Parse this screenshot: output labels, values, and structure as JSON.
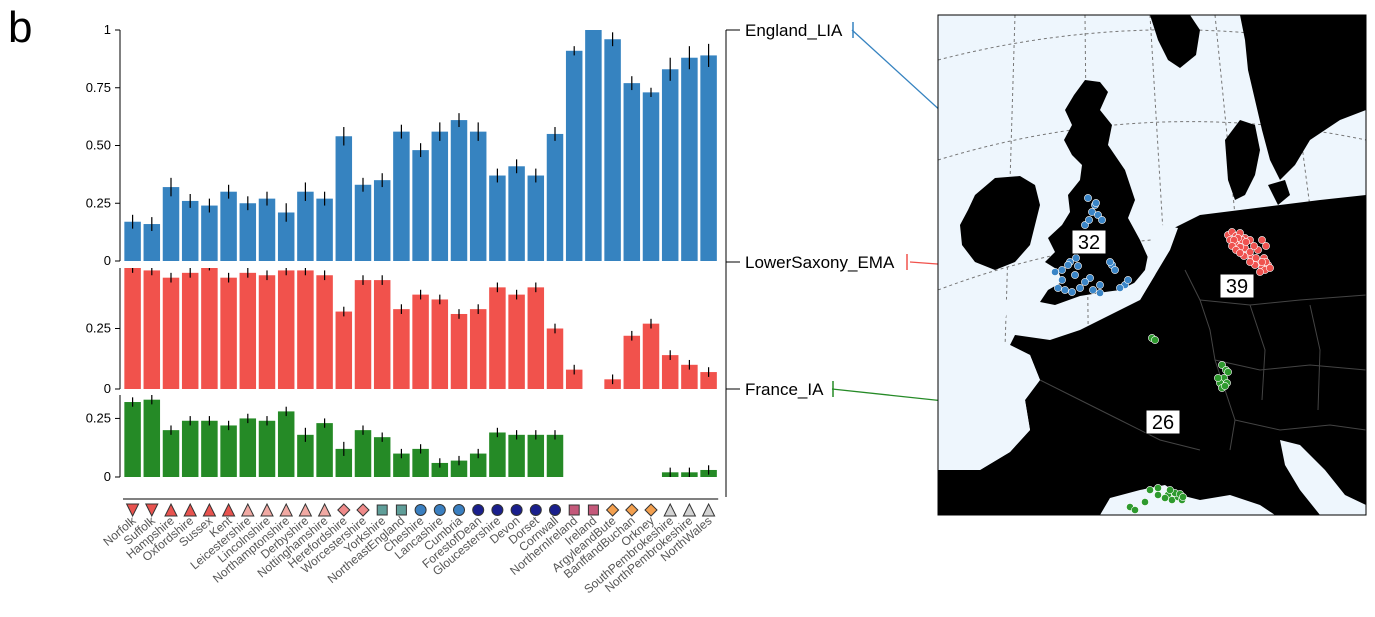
{
  "panel_label": "b",
  "map": {
    "land_color": "#000000",
    "sea_color": "#eef6fd",
    "border_color": "#333333",
    "grid_color": "#777777"
  },
  "chart_data": {
    "type": "bar",
    "stacked_panels": true,
    "error_bars": true,
    "categories": [
      "Norfolk",
      "Suffolk",
      "Hampshire",
      "Oxfordshire",
      "Sussex",
      "Kent",
      "Leicestershire",
      "Lincolnshire",
      "Northamptonshire",
      "Derbyshire",
      "Nottinghamshire",
      "Herefordshire",
      "Worcestershire",
      "Yorkshire",
      "NortheastEngland",
      "Cheshire",
      "Lancashire",
      "Cumbria",
      "ForestofDean",
      "Gloucestershire",
      "Devon",
      "Dorset",
      "Cornwall",
      "NorthernIreland",
      "Ireland",
      "ArgyleandBute",
      "BanffandBuchan",
      "Orkney",
      "SouthPembrokeshire",
      "NorthPembrokeshire",
      "NorthWales"
    ],
    "region_markers": [
      {
        "shape": "triangle-down",
        "color": "#e8534f"
      },
      {
        "shape": "triangle-down",
        "color": "#e8534f"
      },
      {
        "shape": "triangle-up",
        "color": "#e8534f"
      },
      {
        "shape": "triangle-up",
        "color": "#e8534f"
      },
      {
        "shape": "triangle-up",
        "color": "#e8534f"
      },
      {
        "shape": "triangle-up",
        "color": "#e8534f"
      },
      {
        "shape": "triangle-up",
        "color": "#f1a9a3"
      },
      {
        "shape": "triangle-up",
        "color": "#f1a9a3"
      },
      {
        "shape": "triangle-up",
        "color": "#f1a9a3"
      },
      {
        "shape": "triangle-up",
        "color": "#f1a9a3"
      },
      {
        "shape": "triangle-up",
        "color": "#f1a9a3"
      },
      {
        "shape": "diamond",
        "color": "#ef8a8a"
      },
      {
        "shape": "diamond",
        "color": "#ef8a8a"
      },
      {
        "shape": "square",
        "color": "#5f9e99"
      },
      {
        "shape": "square",
        "color": "#5f9e99"
      },
      {
        "shape": "circle",
        "color": "#3a7fc0"
      },
      {
        "shape": "circle",
        "color": "#3a7fc0"
      },
      {
        "shape": "circle",
        "color": "#3a7fc0"
      },
      {
        "shape": "circle",
        "color": "#1a1f8c"
      },
      {
        "shape": "circle",
        "color": "#1a1f8c"
      },
      {
        "shape": "circle",
        "color": "#1a1f8c"
      },
      {
        "shape": "circle",
        "color": "#1a1f8c"
      },
      {
        "shape": "circle",
        "color": "#1a1f8c"
      },
      {
        "shape": "square",
        "color": "#c4587a"
      },
      {
        "shape": "square",
        "color": "#c4587a"
      },
      {
        "shape": "diamond",
        "color": "#f3a04f"
      },
      {
        "shape": "diamond",
        "color": "#f3a04f"
      },
      {
        "shape": "diamond",
        "color": "#f3a04f"
      },
      {
        "shape": "triangle-up",
        "color": "#d3d3d3"
      },
      {
        "shape": "triangle-up",
        "color": "#d3d3d3"
      },
      {
        "shape": "triangle-up",
        "color": "#d3d3d3"
      }
    ],
    "series": [
      {
        "name": "England_LIA",
        "color": "#3683c0",
        "count": "32",
        "ylim": [
          0,
          1
        ],
        "yticks": [
          "0",
          "0.25",
          "0.50",
          "0.75",
          "1"
        ],
        "values": [
          0.17,
          0.16,
          0.32,
          0.26,
          0.24,
          0.3,
          0.25,
          0.27,
          0.21,
          0.3,
          0.27,
          0.54,
          0.33,
          0.35,
          0.56,
          0.48,
          0.56,
          0.61,
          0.56,
          0.37,
          0.41,
          0.37,
          0.55,
          0.91,
          1.0,
          0.96,
          0.77,
          0.73,
          0.83,
          0.88,
          0.89
        ],
        "errors": [
          0.03,
          0.03,
          0.04,
          0.03,
          0.03,
          0.03,
          0.03,
          0.03,
          0.04,
          0.04,
          0.03,
          0.04,
          0.03,
          0.03,
          0.03,
          0.03,
          0.04,
          0.03,
          0.04,
          0.03,
          0.03,
          0.03,
          0.03,
          0.02,
          0.0,
          0.03,
          0.03,
          0.02,
          0.05,
          0.05,
          0.05
        ]
      },
      {
        "name": "LowerSaxony_EMA",
        "color": "#f1524c",
        "count": "39",
        "ylim": [
          0,
          0.5
        ],
        "yticks": [
          "0",
          "0.25"
        ],
        "values": [
          0.5,
          0.49,
          0.46,
          0.48,
          0.51,
          0.46,
          0.48,
          0.47,
          0.49,
          0.49,
          0.47,
          0.32,
          0.45,
          0.45,
          0.33,
          0.39,
          0.37,
          0.31,
          0.33,
          0.42,
          0.39,
          0.42,
          0.25,
          0.08,
          0.0,
          0.04,
          0.22,
          0.27,
          0.14,
          0.1,
          0.07
        ],
        "errors": [
          0.02,
          0.02,
          0.02,
          0.02,
          0.02,
          0.02,
          0.02,
          0.02,
          0.02,
          0.02,
          0.02,
          0.02,
          0.02,
          0.02,
          0.02,
          0.02,
          0.02,
          0.02,
          0.02,
          0.02,
          0.02,
          0.02,
          0.02,
          0.02,
          0.0,
          0.02,
          0.02,
          0.02,
          0.02,
          0.02,
          0.02
        ]
      },
      {
        "name": "France_IA",
        "color": "#258a26",
        "count": "26",
        "ylim": [
          0,
          0.35
        ],
        "yticks": [
          "0",
          "0.25"
        ],
        "values": [
          0.32,
          0.33,
          0.2,
          0.24,
          0.24,
          0.22,
          0.25,
          0.24,
          0.28,
          0.18,
          0.23,
          0.12,
          0.2,
          0.17,
          0.1,
          0.12,
          0.06,
          0.07,
          0.1,
          0.19,
          0.18,
          0.18,
          0.18,
          0.0,
          0.0,
          0.0,
          0.0,
          0.0,
          0.02,
          0.02,
          0.03
        ],
        "errors": [
          0.02,
          0.02,
          0.02,
          0.02,
          0.02,
          0.02,
          0.02,
          0.02,
          0.02,
          0.03,
          0.02,
          0.03,
          0.02,
          0.02,
          0.02,
          0.02,
          0.02,
          0.02,
          0.02,
          0.02,
          0.02,
          0.02,
          0.02,
          0.0,
          0.0,
          0.0,
          0.0,
          0.0,
          0.02,
          0.02,
          0.02
        ]
      }
    ]
  }
}
